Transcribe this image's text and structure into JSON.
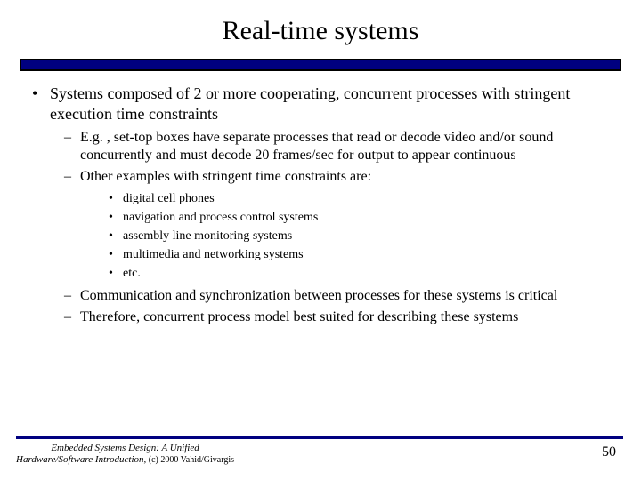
{
  "title": "Real-time systems",
  "accent_color": "#000080",
  "bullets": {
    "b1": "Systems composed of 2 or more cooperating, concurrent processes with stringent execution time constraints",
    "b1_1": "E.g. , set-top boxes have separate processes that read or decode video and/or sound concurrently and must decode 20 frames/sec for output to appear continuous",
    "b1_2": "Other examples with stringent time constraints are:",
    "b1_2_1": "digital cell phones",
    "b1_2_2": "navigation and process control systems",
    "b1_2_3": "assembly line monitoring systems",
    "b1_2_4": "multimedia and networking systems",
    "b1_2_5": "etc.",
    "b1_3": "Communication and synchronization between processes for these systems is critical",
    "b1_4": "Therefore, concurrent process model best suited for describing these systems"
  },
  "footer": {
    "book": "Embedded Systems Design: A Unified ",
    "sub": "Hardware/Software Introduction,",
    "copy": " (c) 2000 Vahid/Givargis",
    "page": "50"
  }
}
